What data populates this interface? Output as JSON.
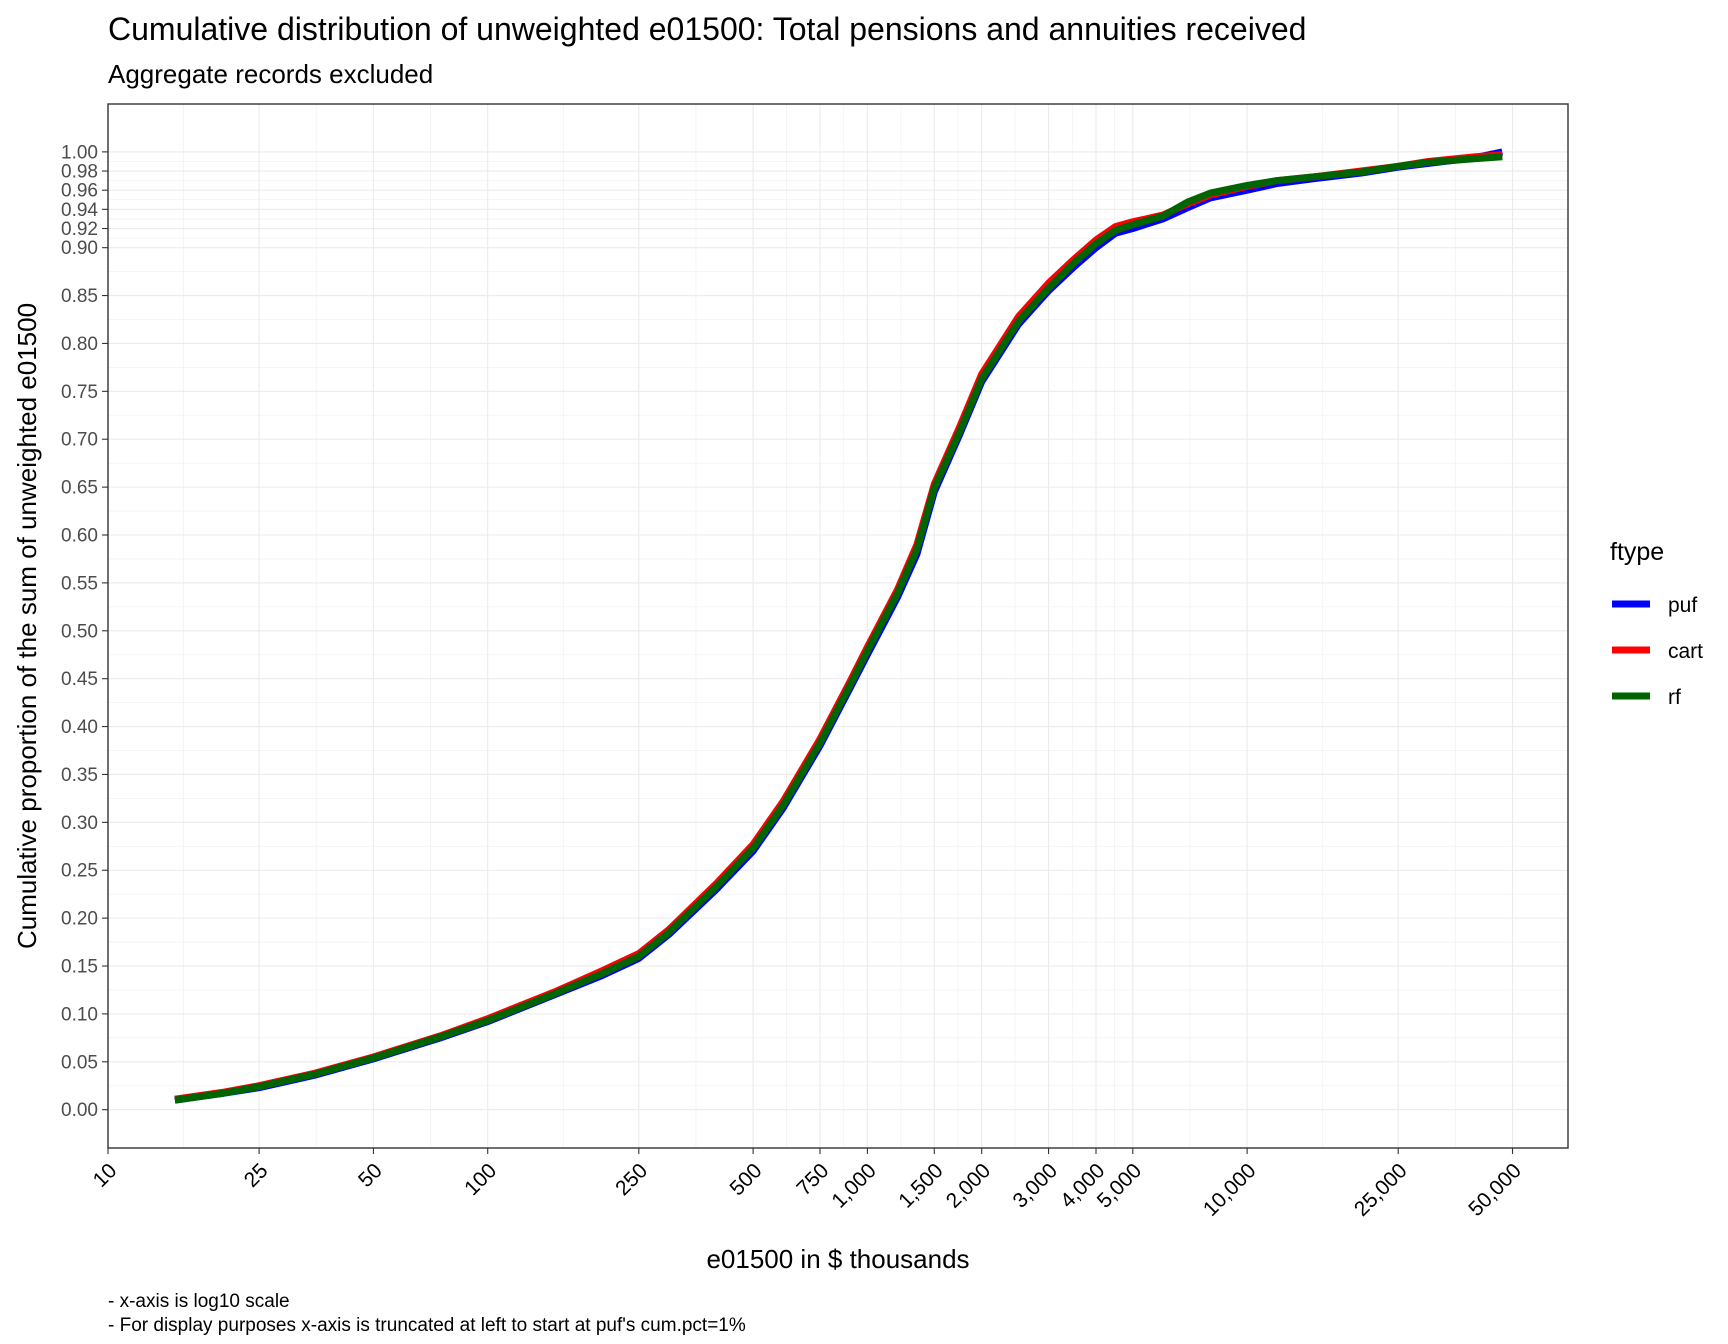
{
  "chart_data": {
    "type": "line",
    "title": "Cumulative distribution of unweighted e01500: Total pensions and annuities received",
    "subtitle": "Aggregate records excluded",
    "xlabel": "e01500 in $ thousands",
    "ylabel": "Cumulative proportion of the sum of unweighted e01500",
    "x_scale": "log10",
    "xlim": [
      10,
      70000
    ],
    "ylim": [
      -0.04,
      1.05
    ],
    "x_ticks": [
      10,
      25,
      50,
      100,
      250,
      500,
      750,
      1000,
      1500,
      2000,
      3000,
      4000,
      5000,
      10000,
      25000,
      50000
    ],
    "x_tick_labels": [
      "10",
      "25",
      "50",
      "100",
      "250",
      "500",
      "750",
      "1,000",
      "1,500",
      "2,000",
      "3,000",
      "4,000",
      "5,000",
      "10,000",
      "25,000",
      "50,000"
    ],
    "y_ticks": [
      0.0,
      0.05,
      0.1,
      0.15,
      0.2,
      0.25,
      0.3,
      0.35,
      0.4,
      0.45,
      0.5,
      0.55,
      0.6,
      0.65,
      0.7,
      0.75,
      0.8,
      0.85,
      0.9,
      0.92,
      0.94,
      0.96,
      0.98,
      1.0
    ],
    "y_tick_labels": [
      "0.00",
      "0.05",
      "0.10",
      "0.15",
      "0.20",
      "0.25",
      "0.30",
      "0.35",
      "0.40",
      "0.45",
      "0.50",
      "0.55",
      "0.60",
      "0.65",
      "0.70",
      "0.75",
      "0.80",
      "0.85",
      "0.90",
      "0.92",
      "0.94",
      "0.96",
      "0.98",
      "1.00"
    ],
    "grid": true,
    "legend": {
      "title": "ftype",
      "position": "right"
    },
    "series": [
      {
        "name": "puf",
        "color": "#0000ff",
        "x": [
          15,
          20,
          25,
          35,
          50,
          75,
          100,
          150,
          200,
          250,
          300,
          400,
          500,
          600,
          750,
          900,
          1000,
          1200,
          1350,
          1500,
          1750,
          2000,
          2500,
          3000,
          3500,
          4000,
          4500,
          5000,
          6000,
          7000,
          8000,
          10000,
          12000,
          15000,
          20000,
          25000,
          30000,
          40000,
          47000
        ],
        "y": [
          0.01,
          0.017,
          0.023,
          0.036,
          0.053,
          0.075,
          0.092,
          0.12,
          0.14,
          0.158,
          0.183,
          0.23,
          0.27,
          0.315,
          0.38,
          0.44,
          0.475,
          0.535,
          0.58,
          0.645,
          0.705,
          0.76,
          0.82,
          0.855,
          0.88,
          0.9,
          0.915,
          0.92,
          0.93,
          0.942,
          0.952,
          0.96,
          0.967,
          0.972,
          0.978,
          0.984,
          0.988,
          0.994,
          1.0
        ]
      },
      {
        "name": "cart",
        "color": "#ff0000",
        "x": [
          15,
          20,
          25,
          35,
          50,
          75,
          100,
          150,
          200,
          250,
          300,
          400,
          500,
          600,
          750,
          900,
          1000,
          1200,
          1350,
          1500,
          1750,
          2000,
          2500,
          3000,
          3500,
          4000,
          4500,
          5000,
          6000,
          7000,
          8000,
          10000,
          12000,
          15000,
          20000,
          25000,
          30000,
          40000,
          47000
        ],
        "y": [
          0.011,
          0.018,
          0.025,
          0.038,
          0.055,
          0.077,
          0.095,
          0.123,
          0.145,
          0.163,
          0.188,
          0.236,
          0.277,
          0.322,
          0.387,
          0.447,
          0.483,
          0.543,
          0.59,
          0.653,
          0.713,
          0.768,
          0.828,
          0.863,
          0.888,
          0.908,
          0.922,
          0.927,
          0.934,
          0.946,
          0.955,
          0.964,
          0.97,
          0.974,
          0.98,
          0.985,
          0.99,
          0.995,
          0.997
        ]
      },
      {
        "name": "rf",
        "color": "#006400",
        "x": [
          15,
          20,
          25,
          35,
          50,
          75,
          100,
          150,
          200,
          250,
          300,
          400,
          500,
          600,
          750,
          900,
          1000,
          1200,
          1350,
          1500,
          1750,
          2000,
          2500,
          3000,
          3500,
          4000,
          4500,
          5000,
          6000,
          7000,
          8000,
          10000,
          12000,
          15000,
          20000,
          25000,
          30000,
          40000,
          47000
        ],
        "y": [
          0.01,
          0.017,
          0.024,
          0.037,
          0.054,
          0.076,
          0.093,
          0.121,
          0.142,
          0.16,
          0.185,
          0.233,
          0.273,
          0.318,
          0.383,
          0.443,
          0.479,
          0.539,
          0.585,
          0.649,
          0.708,
          0.763,
          0.823,
          0.858,
          0.884,
          0.904,
          0.918,
          0.924,
          0.933,
          0.948,
          0.957,
          0.965,
          0.97,
          0.974,
          0.979,
          0.985,
          0.989,
          0.993,
          0.995
        ]
      }
    ],
    "captions": [
      "- x-axis is log10 scale",
      "- For display purposes x-axis is truncated at left to start at puf's cum.pct=1%"
    ]
  }
}
